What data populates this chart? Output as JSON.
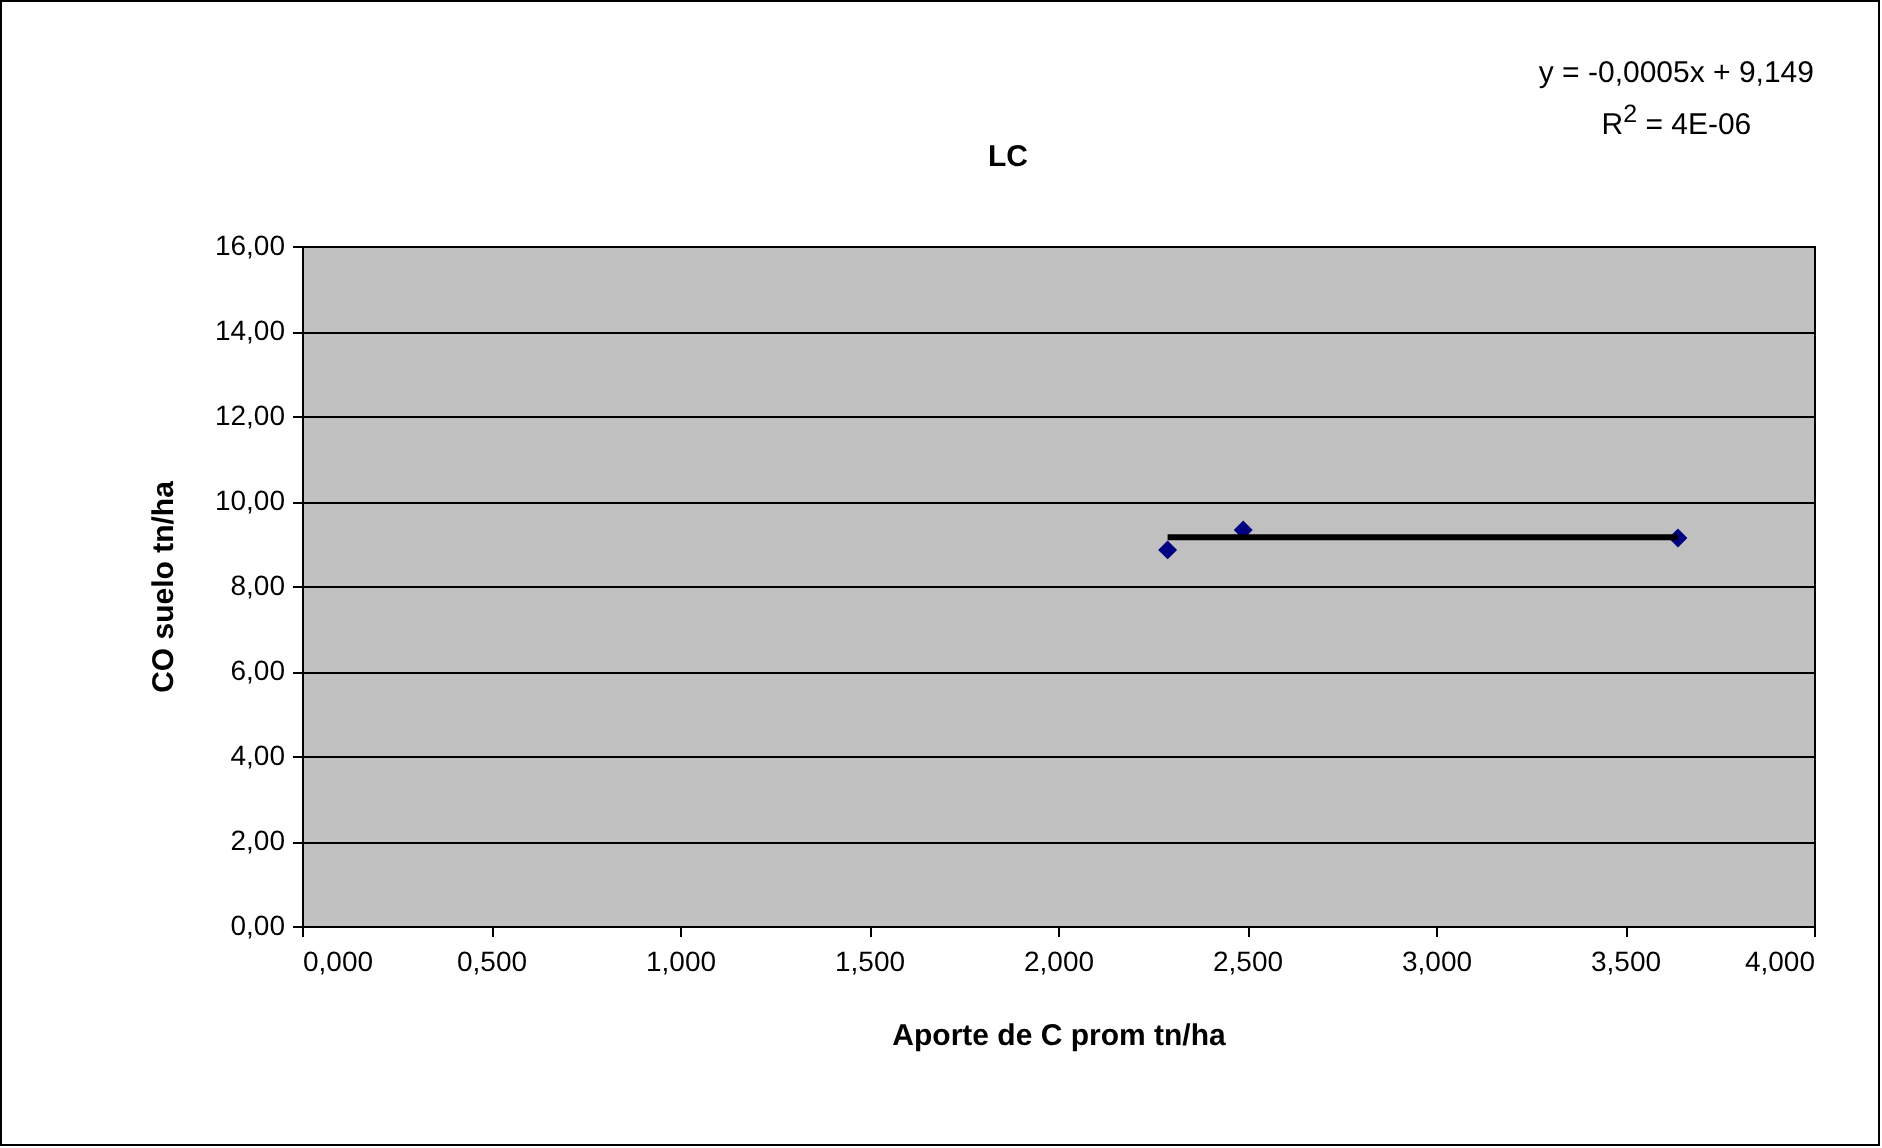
{
  "chart_data": {
    "type": "scatter",
    "title": "LC",
    "xlabel": "Aporte de C prom tn/ha",
    "ylabel": "CO suelo tn/ha",
    "annotations": [
      "y = -0,0005x + 9,149",
      "R$^{2}$ = 4E-06"
    ],
    "series": [
      {
        "color": "#000080",
        "marker": "diamond",
        "x": [
          2.29,
          2.49,
          3.64
        ],
        "values": [
          8.85,
          9.32,
          9.13
        ]
      },
      {
        "type": "line",
        "color": "#000000",
        "marker": "none",
        "x": [
          2.29,
          3.64
        ],
        "values": [
          9.15,
          9.15
        ]
      }
    ],
    "xlim": [
      0,
      4
    ],
    "ylim": [
      0,
      16
    ],
    "xticks": [
      {
        "value": 0,
        "label": "0,000"
      },
      {
        "value": 0.5,
        "label": "0,500"
      },
      {
        "value": 1,
        "label": "1,000"
      },
      {
        "value": 1.5,
        "label": "1,500"
      },
      {
        "value": 2,
        "label": "2,000"
      },
      {
        "value": 2.5,
        "label": "2,500"
      },
      {
        "value": 3,
        "label": "3,000"
      },
      {
        "value": 3.5,
        "label": "3,500"
      },
      {
        "value": 4,
        "label": "4,000"
      }
    ],
    "yticks": [
      {
        "value": 0,
        "label": "0,00"
      },
      {
        "value": 2,
        "label": "2,00"
      },
      {
        "value": 4,
        "label": "4,00"
      },
      {
        "value": 6,
        "label": "6,00"
      },
      {
        "value": 8,
        "label": "8,00"
      },
      {
        "value": 10,
        "label": "10,00"
      },
      {
        "value": 12,
        "label": "12,00"
      },
      {
        "value": 14,
        "label": "14,00"
      },
      {
        "value": 16,
        "label": "16,00"
      }
    ],
    "grid": "y"
  }
}
